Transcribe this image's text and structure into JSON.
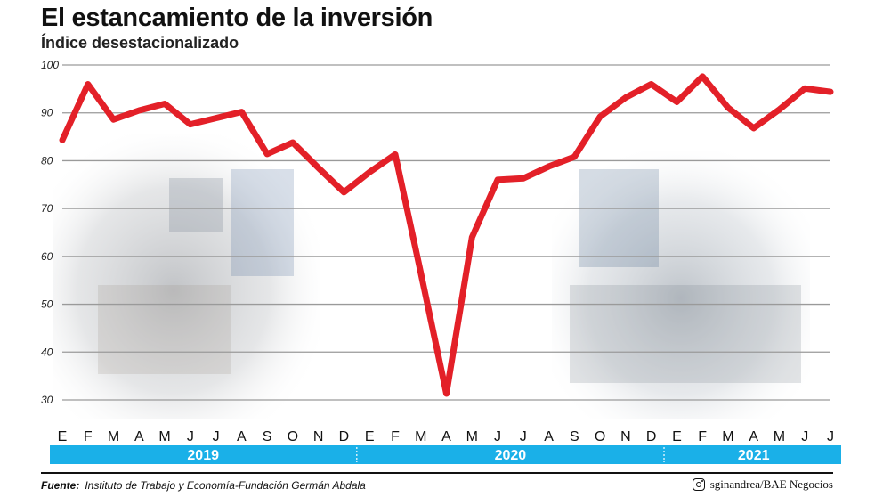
{
  "header": {
    "title": "El estancamiento de la inversión",
    "subtitle": "Índice desestacionalizado"
  },
  "chart_data": {
    "type": "line",
    "categories": [
      "E",
      "F",
      "M",
      "A",
      "M",
      "J",
      "J",
      "A",
      "S",
      "O",
      "N",
      "D",
      "E",
      "F",
      "M",
      "A",
      "M",
      "J",
      "J",
      "A",
      "S",
      "O",
      "N",
      "D",
      "E",
      "F",
      "M",
      "A",
      "M",
      "J",
      "J"
    ],
    "years": [
      {
        "label": "2019",
        "start": 0,
        "count": 12
      },
      {
        "label": "2020",
        "start": 12,
        "count": 12
      },
      {
        "label": "2021",
        "start": 24,
        "count": 7
      }
    ],
    "series": [
      {
        "values": [
          84.3,
          96,
          88.6,
          90.5,
          91.9,
          87.6,
          88.9,
          90.2,
          81.4,
          83.8,
          78.5,
          73.4,
          77.6,
          81.3,
          56.6,
          31.3,
          64,
          76,
          76.3,
          78.8,
          80.8,
          89.2,
          93.2,
          96,
          92.3,
          97.6,
          91.1,
          86.8,
          90.7,
          95.1,
          94.4
        ]
      }
    ],
    "y_ticks": [
      30,
      40,
      50,
      60,
      70,
      80,
      90,
      100
    ],
    "ylim": [
      30,
      100
    ],
    "grid": true,
    "line_color": "#e32028",
    "band_color": "#1ab0e8",
    "gridline_color": "#9a9a9a"
  },
  "footer": {
    "source_label": "Fuente:",
    "source_text": "Instituto de Trabajo y Economía-Fundación Germán Abdala",
    "credit": "sginandrea/BAE Negocios",
    "credit_icon": "instagram-icon"
  }
}
